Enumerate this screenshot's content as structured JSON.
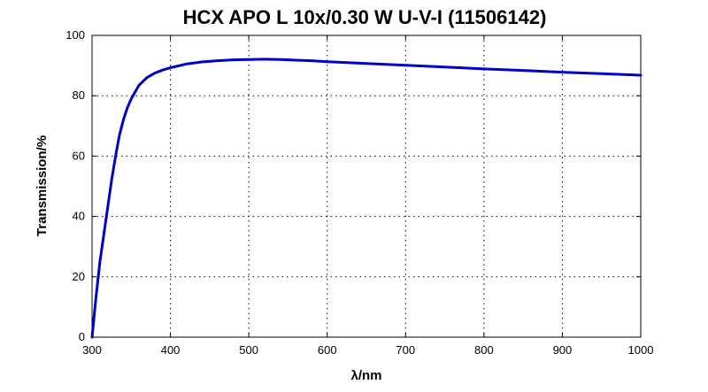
{
  "chart_data": {
    "type": "line",
    "title": "HCX APO L 10x/0.30 W U-V-I (11506142)",
    "xlabel": "λ/nm",
    "ylabel": "Transmission/%",
    "xlim": [
      300,
      1000
    ],
    "ylim": [
      0,
      100
    ],
    "xticks": [
      300,
      400,
      500,
      600,
      700,
      800,
      900,
      1000
    ],
    "yticks": [
      0,
      20,
      40,
      60,
      80,
      100
    ],
    "grid": true,
    "series_color": "#0000cc",
    "series": [
      {
        "x": [
          300,
          305,
          310,
          315,
          320,
          325,
          330,
          335,
          340,
          345,
          350,
          360,
          370,
          380,
          390,
          400,
          420,
          440,
          460,
          480,
          500,
          520,
          540,
          560,
          580,
          600,
          650,
          700,
          750,
          800,
          850,
          900,
          950,
          1000
        ],
        "y": [
          0,
          13,
          25,
          34,
          43,
          52,
          60,
          67,
          72,
          76,
          79,
          83.5,
          86,
          87.5,
          88.5,
          89.3,
          90.5,
          91.2,
          91.6,
          91.9,
          92.0,
          92.1,
          92.0,
          91.8,
          91.6,
          91.3,
          90.7,
          90.1,
          89.5,
          88.9,
          88.4,
          87.8,
          87.3,
          86.8
        ]
      }
    ]
  }
}
